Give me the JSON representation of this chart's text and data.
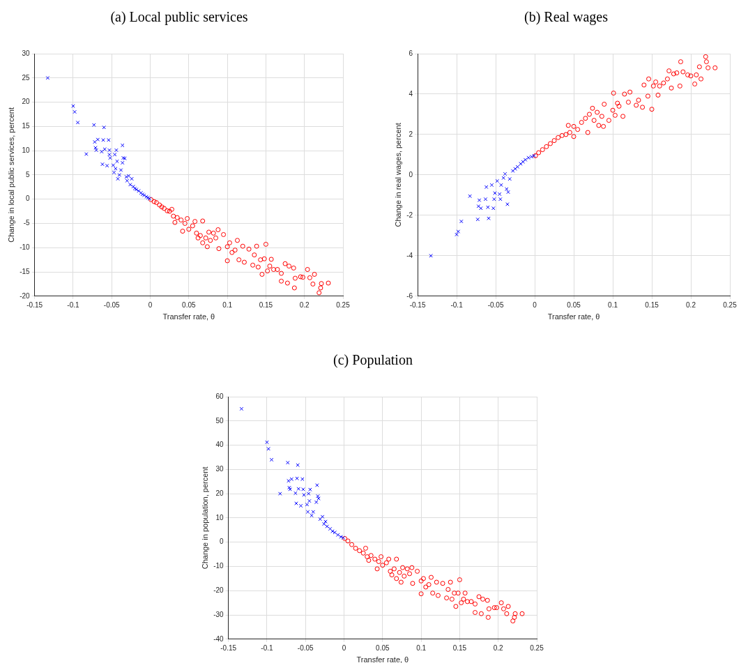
{
  "chart_data": [
    {
      "type": "scatter",
      "title": "(a) Local public services",
      "xlabel": "Transfer rate, θ",
      "ylabel": "Change in local public services, percent",
      "xlim": [
        -0.15,
        0.25
      ],
      "xticks": [
        -0.15,
        -0.1,
        -0.05,
        0,
        0.05,
        0.1,
        0.15,
        0.2,
        0.25
      ],
      "ylim": [
        -20,
        30
      ],
      "yticks": [
        -20,
        -15,
        -10,
        -5,
        0,
        5,
        10,
        15,
        20,
        25,
        30
      ],
      "grid": true,
      "legend": false,
      "series": [
        {
          "color": "#0000ff",
          "marker": "cross",
          "x": [
            -0.133,
            -0.1,
            -0.098,
            -0.094,
            -0.083,
            -0.073,
            -0.072,
            -0.071,
            -0.07,
            -0.068,
            -0.063,
            -0.062,
            -0.061,
            -0.06,
            -0.059,
            -0.056,
            -0.054,
            -0.053,
            -0.053,
            -0.052,
            -0.048,
            -0.047,
            -0.046,
            -0.045,
            -0.044,
            -0.043,
            -0.042,
            -0.04,
            -0.038,
            -0.036,
            -0.036,
            -0.035,
            -0.033,
            -0.031,
            -0.03,
            -0.028,
            -0.026,
            -0.024,
            -0.022,
            -0.02,
            -0.018,
            -0.015,
            -0.012,
            -0.01,
            -0.008,
            -0.005,
            -0.003,
            -0.001
          ],
          "values": [
            25,
            19.2,
            18,
            15.8,
            9.3,
            15.3,
            11.8,
            10.6,
            10.1,
            12.3,
            9.8,
            7.2,
            12.2,
            14.8,
            10.3,
            6.9,
            12.2,
            10.1,
            9.2,
            8.5,
            7.0,
            5.5,
            9.2,
            6.3,
            10.1,
            7.8,
            4.2,
            5.0,
            6.0,
            7.5,
            11.1,
            8.5,
            8.4,
            4.6,
            3.8,
            4.8,
            3.0,
            4.2,
            2.6,
            2.2,
            2.0,
            1.7,
            1.3,
            1.0,
            0.8,
            0.5,
            0.3,
            0.1
          ]
        },
        {
          "color": "#ff0000",
          "marker": "circle",
          "x": [
            0.001,
            0.005,
            0.008,
            0.012,
            0.015,
            0.018,
            0.022,
            0.025,
            0.028,
            0.03,
            0.032,
            0.035,
            0.04,
            0.042,
            0.045,
            0.048,
            0.05,
            0.055,
            0.058,
            0.06,
            0.062,
            0.065,
            0.068,
            0.068,
            0.072,
            0.074,
            0.076,
            0.078,
            0.082,
            0.085,
            0.088,
            0.089,
            0.095,
            0.1,
            0.1,
            0.103,
            0.106,
            0.11,
            0.113,
            0.115,
            0.12,
            0.122,
            0.128,
            0.133,
            0.135,
            0.138,
            0.14,
            0.143,
            0.145,
            0.148,
            0.15,
            0.152,
            0.155,
            0.157,
            0.16,
            0.165,
            0.17,
            0.17,
            0.175,
            0.178,
            0.18,
            0.186,
            0.187,
            0.188,
            0.195,
            0.198,
            0.204,
            0.207,
            0.211,
            0.213,
            0.219,
            0.221,
            0.222,
            0.231
          ],
          "values": [
            -0.1,
            -0.5,
            -0.7,
            -1.2,
            -1.6,
            -1.9,
            -2.4,
            -2.5,
            -2.1,
            -3.5,
            -4.8,
            -3.8,
            -4.3,
            -6.6,
            -5.0,
            -4.0,
            -6.2,
            -5.5,
            -4.6,
            -7.0,
            -8.0,
            -7.5,
            -4.5,
            -9.0,
            -8.0,
            -9.8,
            -6.8,
            -8.5,
            -7.0,
            -8.0,
            -6.3,
            -10.2,
            -7.3,
            -9.8,
            -12.7,
            -9.0,
            -11.0,
            -10.5,
            -8.5,
            -12.5,
            -9.7,
            -13.0,
            -10.3,
            -13.6,
            -11.5,
            -9.7,
            -14.0,
            -12.5,
            -15.5,
            -12.3,
            -9.3,
            -14.8,
            -13.8,
            -12.4,
            -14.5,
            -14.5,
            -15.3,
            -16.9,
            -13.3,
            -17.3,
            -13.8,
            -14.2,
            -18.3,
            -16.3,
            -16.0,
            -16.1,
            -14.5,
            -16.2,
            -17.5,
            -15.5,
            -19.3,
            -18.3,
            -17.4,
            -17.3
          ]
        }
      ]
    },
    {
      "type": "scatter",
      "title": "(b) Real wages",
      "xlabel": "Transfer rate, θ",
      "ylabel": "Change in real wages, percent",
      "xlim": [
        -0.15,
        0.25
      ],
      "xticks": [
        -0.15,
        -0.1,
        -0.05,
        0,
        0.05,
        0.1,
        0.15,
        0.2,
        0.25
      ],
      "ylim": [
        -6,
        6
      ],
      "yticks": [
        -6,
        -4,
        -2,
        0,
        2,
        4,
        6
      ],
      "grid": true,
      "legend": false,
      "series": [
        {
          "color": "#0000ff",
          "marker": "cross",
          "x": [
            -0.133,
            -0.1,
            -0.098,
            -0.094,
            -0.083,
            -0.073,
            -0.072,
            -0.071,
            -0.069,
            -0.063,
            -0.062,
            -0.06,
            -0.059,
            -0.055,
            -0.053,
            -0.052,
            -0.051,
            -0.048,
            -0.045,
            -0.044,
            -0.043,
            -0.04,
            -0.038,
            -0.036,
            -0.035,
            -0.034,
            -0.032,
            -0.028,
            -0.025,
            -0.022,
            -0.018,
            -0.015,
            -0.012,
            -0.008,
            -0.004,
            -0.001
          ],
          "values": [
            -4.0,
            -2.95,
            -2.8,
            -2.3,
            -1.05,
            -2.2,
            -1.55,
            -1.25,
            -1.65,
            -1.2,
            -0.6,
            -1.6,
            -2.15,
            -0.5,
            -1.65,
            -1.2,
            -0.9,
            -0.3,
            -0.95,
            -1.2,
            -0.5,
            -0.15,
            0.05,
            -0.7,
            -1.45,
            -0.85,
            -0.2,
            0.2,
            0.3,
            0.4,
            0.55,
            0.65,
            0.75,
            0.85,
            0.9,
            0.95
          ]
        },
        {
          "color": "#ff0000",
          "marker": "circle",
          "x": [
            0.001,
            0.005,
            0.01,
            0.015,
            0.02,
            0.025,
            0.03,
            0.035,
            0.04,
            0.043,
            0.045,
            0.05,
            0.05,
            0.055,
            0.06,
            0.065,
            0.068,
            0.07,
            0.074,
            0.076,
            0.08,
            0.082,
            0.086,
            0.088,
            0.089,
            0.095,
            0.1,
            0.101,
            0.103,
            0.106,
            0.108,
            0.113,
            0.115,
            0.12,
            0.122,
            0.13,
            0.133,
            0.138,
            0.14,
            0.145,
            0.146,
            0.15,
            0.152,
            0.155,
            0.158,
            0.16,
            0.165,
            0.17,
            0.172,
            0.175,
            0.178,
            0.182,
            0.186,
            0.187,
            0.19,
            0.196,
            0.2,
            0.205,
            0.207,
            0.211,
            0.213,
            0.219,
            0.22,
            0.222,
            0.231
          ],
          "values": [
            0.95,
            1.1,
            1.25,
            1.4,
            1.55,
            1.7,
            1.85,
            1.95,
            2.0,
            2.45,
            2.1,
            1.9,
            2.4,
            2.25,
            2.6,
            2.8,
            2.1,
            3.0,
            3.3,
            2.7,
            3.1,
            2.45,
            2.9,
            2.4,
            3.5,
            2.7,
            3.2,
            4.05,
            2.95,
            3.55,
            3.4,
            2.9,
            4.0,
            3.6,
            4.1,
            3.45,
            3.7,
            3.35,
            4.45,
            3.9,
            4.75,
            3.25,
            4.4,
            4.6,
            3.95,
            4.4,
            4.55,
            4.75,
            5.15,
            4.3,
            5.0,
            5.05,
            4.4,
            5.6,
            5.1,
            4.95,
            4.9,
            4.5,
            4.95,
            5.35,
            4.75,
            5.85,
            5.6,
            5.3,
            5.3
          ]
        }
      ]
    },
    {
      "type": "scatter",
      "title": "(c) Population",
      "xlabel": "Transfer rate, θ",
      "ylabel": "Change in population, percent",
      "xlim": [
        -0.15,
        0.25
      ],
      "xticks": [
        -0.15,
        -0.1,
        -0.05,
        0,
        0.05,
        0.1,
        0.15,
        0.2,
        0.25
      ],
      "ylim": [
        -40,
        60
      ],
      "yticks": [
        -40,
        -30,
        -20,
        -10,
        0,
        10,
        20,
        30,
        40,
        50,
        60
      ],
      "grid": true,
      "legend": false,
      "series": [
        {
          "color": "#0000ff",
          "marker": "cross",
          "x": [
            -0.133,
            -0.1,
            -0.098,
            -0.094,
            -0.083,
            -0.073,
            -0.072,
            -0.071,
            -0.07,
            -0.068,
            -0.063,
            -0.062,
            -0.061,
            -0.06,
            -0.059,
            -0.056,
            -0.054,
            -0.053,
            -0.052,
            -0.048,
            -0.047,
            -0.046,
            -0.045,
            -0.044,
            -0.042,
            -0.04,
            -0.036,
            -0.035,
            -0.034,
            -0.033,
            -0.031,
            -0.028,
            -0.026,
            -0.024,
            -0.022,
            -0.018,
            -0.015,
            -0.012,
            -0.008,
            -0.004,
            -0.001
          ],
          "values": [
            55,
            41.2,
            38.5,
            34,
            20,
            32.8,
            25.3,
            22.5,
            21.8,
            26,
            20.2,
            16,
            26.3,
            31.8,
            22,
            15,
            26,
            21.8,
            19.5,
            15.5,
            12.5,
            20,
            17,
            21.7,
            11,
            12.5,
            16.5,
            23.5,
            19,
            18,
            9.5,
            10.5,
            7.5,
            8.5,
            6.5,
            5.5,
            4.5,
            4,
            3,
            2.2,
            1.8
          ]
        },
        {
          "color": "#ff0000",
          "marker": "circle",
          "x": [
            0.001,
            0.005,
            0.01,
            0.015,
            0.02,
            0.025,
            0.028,
            0.03,
            0.032,
            0.035,
            0.04,
            0.043,
            0.045,
            0.048,
            0.05,
            0.055,
            0.058,
            0.06,
            0.062,
            0.065,
            0.068,
            0.068,
            0.072,
            0.074,
            0.076,
            0.078,
            0.082,
            0.085,
            0.088,
            0.089,
            0.095,
            0.1,
            0.1,
            0.103,
            0.106,
            0.11,
            0.113,
            0.115,
            0.12,
            0.122,
            0.128,
            0.133,
            0.135,
            0.138,
            0.14,
            0.143,
            0.145,
            0.148,
            0.15,
            0.152,
            0.155,
            0.157,
            0.16,
            0.165,
            0.17,
            0.17,
            0.175,
            0.178,
            0.18,
            0.186,
            0.187,
            0.188,
            0.195,
            0.198,
            0.204,
            0.207,
            0.211,
            0.213,
            0.219,
            0.221,
            0.222,
            0.231
          ],
          "values": [
            1.5,
            0.5,
            -1,
            -2.5,
            -3.5,
            -4.5,
            -2.5,
            -6,
            -7.5,
            -5.5,
            -7,
            -11,
            -8,
            -6,
            -9.5,
            -8.5,
            -7,
            -12,
            -13.5,
            -11,
            -7,
            -15,
            -12.5,
            -16.5,
            -10.5,
            -14,
            -11,
            -13,
            -10.5,
            -17,
            -12,
            -16,
            -21.3,
            -15,
            -18.5,
            -17.5,
            -14.5,
            -21,
            -16.5,
            -22,
            -17,
            -23,
            -19.5,
            -16.5,
            -23.5,
            -21,
            -26.5,
            -21,
            -15.5,
            -25,
            -23.5,
            -21,
            -24.5,
            -24.5,
            -25.5,
            -29,
            -22.5,
            -29.5,
            -23.5,
            -24,
            -31,
            -27.5,
            -27,
            -27,
            -25,
            -27.5,
            -29.5,
            -26.5,
            -32.5,
            -31,
            -29.5,
            -29.5
          ]
        }
      ]
    }
  ]
}
